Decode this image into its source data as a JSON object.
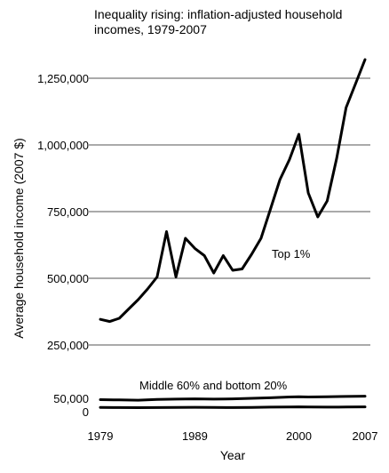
{
  "chart_data": {
    "type": "line",
    "title": "Inequality rising: inflation-adjusted household incomes, 1979-2007",
    "xlabel": "Year",
    "ylabel": "Average household income (2007 $)",
    "xlim": [
      1979,
      2007
    ],
    "ylim": [
      0,
      1350000
    ],
    "x_ticks": [
      1979,
      1989,
      2000,
      2007
    ],
    "y_ticks": [
      0,
      50000,
      250000,
      500000,
      750000,
      1000000,
      1250000
    ],
    "y_tick_labels": [
      "0",
      "50,000",
      "250,000",
      "500,000",
      "750,000",
      "1,000,000",
      "1,250,000"
    ],
    "grid": "horizontal",
    "line_color": "#000000",
    "series": [
      {
        "name": "Top 1%",
        "x": [
          1979,
          1980,
          1981,
          1982,
          1983,
          1984,
          1985,
          1986,
          1987,
          1988,
          1989,
          1990,
          1991,
          1992,
          1993,
          1994,
          1995,
          1996,
          1997,
          1998,
          1999,
          2000,
          2001,
          2002,
          2003,
          2004,
          2005,
          2006,
          2007
        ],
        "values": [
          346000,
          338000,
          350000,
          385000,
          420000,
          460000,
          505000,
          675000,
          505000,
          650000,
          612000,
          585000,
          520000,
          585000,
          530000,
          535000,
          590000,
          650000,
          760000,
          870000,
          945000,
          1040000,
          820000,
          730000,
          790000,
          950000,
          1140000,
          1230000,
          1320000
        ]
      },
      {
        "name": "Middle 60%",
        "x": [
          1979,
          1981,
          1983,
          1985,
          1987,
          1989,
          1991,
          1993,
          1995,
          1997,
          1999,
          2000,
          2001,
          2003,
          2005,
          2007
        ],
        "values": [
          45000,
          44000,
          43000,
          46000,
          47000,
          48000,
          47000,
          48000,
          50000,
          52000,
          55000,
          56000,
          55000,
          56000,
          57000,
          58000
        ]
      },
      {
        "name": "Bottom 20%",
        "x": [
          1979,
          1981,
          1983,
          1985,
          1987,
          1989,
          1991,
          1993,
          1995,
          1997,
          1999,
          2000,
          2001,
          2003,
          2005,
          2007
        ],
        "values": [
          16000,
          15500,
          15000,
          15500,
          16000,
          16500,
          16000,
          15500,
          16000,
          17000,
          17500,
          18000,
          17500,
          17000,
          17500,
          18000
        ]
      }
    ],
    "annotations": {
      "top": "Top 1%",
      "lower": "Middle 60% and bottom 20%"
    }
  }
}
